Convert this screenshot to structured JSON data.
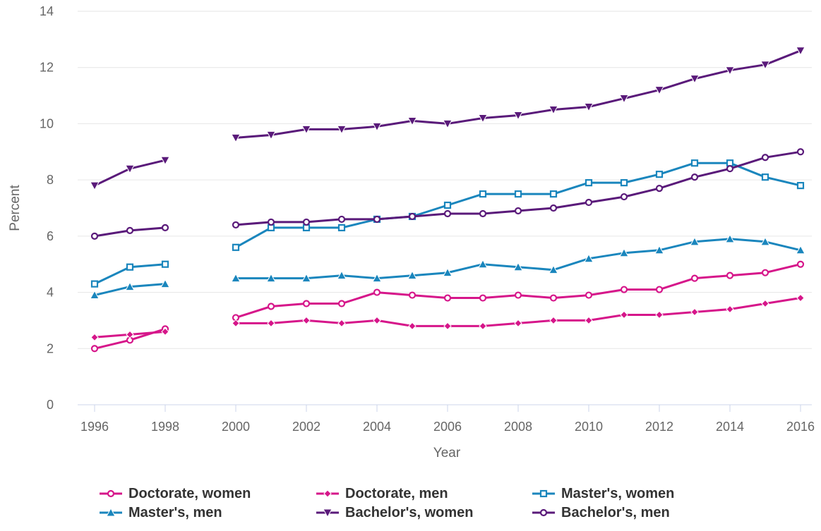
{
  "chart_data": {
    "type": "line",
    "title": "",
    "xlabel": "Year",
    "ylabel": "Percent",
    "xlim": [
      1995.8,
      2016.4
    ],
    "ylim": [
      0,
      14
    ],
    "x_ticks": [
      1996,
      1998,
      2000,
      2002,
      2004,
      2006,
      2008,
      2010,
      2012,
      2014,
      2016
    ],
    "y_ticks": [
      0,
      2,
      4,
      6,
      8,
      10,
      12,
      14
    ],
    "grid": "horizontal",
    "legend_position": "bottom",
    "x": [
      1996,
      1997,
      1998,
      1999,
      2000,
      2001,
      2002,
      2003,
      2004,
      2005,
      2006,
      2007,
      2008,
      2009,
      2010,
      2011,
      2012,
      2013,
      2014,
      2015,
      2016
    ],
    "series": [
      {
        "name": "Doctorate, women",
        "color": "#d6168a",
        "marker": "circle",
        "values": [
          2.0,
          2.3,
          2.7,
          null,
          3.1,
          3.5,
          3.6,
          3.6,
          4.0,
          3.9,
          3.8,
          3.8,
          3.9,
          3.8,
          3.9,
          4.1,
          4.1,
          4.5,
          4.6,
          4.7,
          5.0
        ]
      },
      {
        "name": "Doctorate, men",
        "color": "#d6168a",
        "marker": "diamond",
        "values": [
          2.4,
          2.5,
          2.6,
          null,
          2.9,
          2.9,
          3.0,
          2.9,
          3.0,
          2.8,
          2.8,
          2.8,
          2.9,
          3.0,
          3.0,
          3.2,
          3.2,
          3.3,
          3.4,
          3.6,
          3.8
        ]
      },
      {
        "name": "Master's, women",
        "color": "#1a86bd",
        "marker": "square",
        "values": [
          4.3,
          4.9,
          5.0,
          null,
          5.6,
          6.3,
          6.3,
          6.3,
          6.6,
          6.7,
          7.1,
          7.5,
          7.5,
          7.5,
          7.9,
          7.9,
          8.2,
          8.6,
          8.6,
          8.1,
          7.8
        ]
      },
      {
        "name": "Master's, men",
        "color": "#1a86bd",
        "marker": "triangle-up",
        "values": [
          3.9,
          4.2,
          4.3,
          null,
          4.5,
          4.5,
          4.5,
          4.6,
          4.5,
          4.6,
          4.7,
          5.0,
          4.9,
          4.8,
          5.2,
          5.4,
          5.5,
          5.8,
          5.9,
          5.8,
          5.5
        ]
      },
      {
        "name": "Bachelor's, women",
        "color": "#5a1a7a",
        "marker": "triangle-down",
        "values": [
          7.8,
          8.4,
          8.7,
          null,
          9.5,
          9.6,
          9.8,
          9.8,
          9.9,
          10.1,
          10.0,
          10.2,
          10.3,
          10.5,
          10.6,
          10.9,
          11.2,
          11.6,
          11.9,
          12.1,
          12.6
        ]
      },
      {
        "name": "Bachelor's, men",
        "color": "#5a1a7a",
        "marker": "circle",
        "values": [
          6.0,
          6.2,
          6.3,
          null,
          6.4,
          6.5,
          6.5,
          6.6,
          6.6,
          6.7,
          6.8,
          6.8,
          6.9,
          7.0,
          7.2,
          7.4,
          7.7,
          8.1,
          8.4,
          8.8,
          9.0
        ]
      }
    ]
  }
}
